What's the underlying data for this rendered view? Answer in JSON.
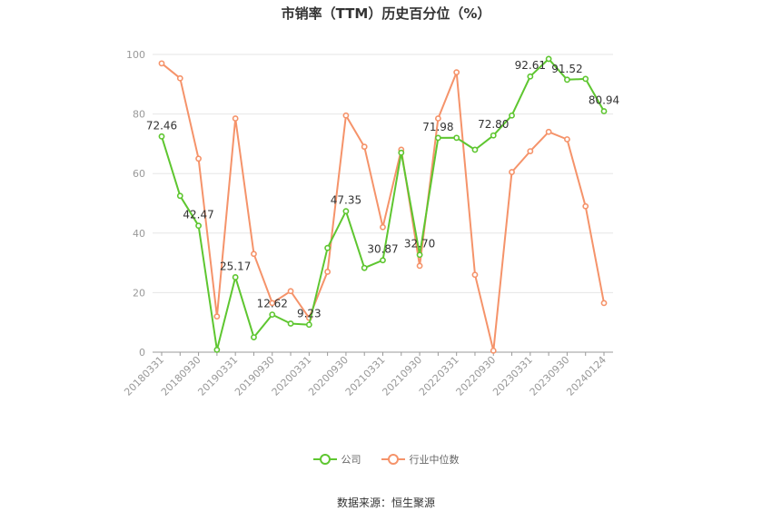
{
  "chart_data": {
    "type": "line",
    "title": "市销率（TTM）历史百分位（%）",
    "xlabel": "",
    "ylabel": "",
    "ylim": [
      0,
      100
    ],
    "yticks": [
      0,
      20,
      40,
      60,
      80,
      100
    ],
    "x": [
      "20180331",
      "20180630",
      "20180930",
      "20181231",
      "20190331",
      "20190630",
      "20190930",
      "20191231",
      "20200331",
      "20200630",
      "20200930",
      "20201231",
      "20210331",
      "20210630",
      "20210930",
      "20211231",
      "20220331",
      "20220630",
      "20220930",
      "20221231",
      "20230331",
      "20230630",
      "20230930",
      "20231231",
      "20240124"
    ],
    "xtick_labels": [
      "20180331",
      "20180930",
      "20190331",
      "20190930",
      "20200331",
      "20200930",
      "20210331",
      "20210930",
      "20220331",
      "20220930",
      "20230331",
      "20230930",
      "20240124"
    ],
    "series": [
      {
        "name": "公司",
        "color": "#5ec630",
        "values": [
          72.46,
          52.5,
          42.47,
          0.8,
          25.17,
          5.0,
          12.62,
          9.6,
          9.23,
          35.0,
          47.35,
          28.3,
          30.87,
          67.0,
          32.7,
          71.98,
          72.0,
          68.0,
          72.8,
          79.5,
          92.61,
          98.5,
          91.52,
          91.8,
          80.94
        ],
        "labels": {
          "0": "72.46",
          "2": "42.47",
          "4": "25.17",
          "6": "12.62",
          "8": "9.23",
          "10": "47.35",
          "12": "30.87",
          "14": "32.70",
          "15": "71.98",
          "18": "72.80",
          "20": "92.61",
          "22": "91.52",
          "24": "80.94"
        }
      },
      {
        "name": "行业中位数",
        "color": "#f5936a",
        "values": [
          97.0,
          92.0,
          65.0,
          12.0,
          78.5,
          33.0,
          16.5,
          20.5,
          11.5,
          27.0,
          79.5,
          69.0,
          42.0,
          68.0,
          29.0,
          78.5,
          94.0,
          26.0,
          0.5,
          60.5,
          67.5,
          74.0,
          71.5,
          49.0,
          16.5
        ]
      }
    ],
    "grid": true,
    "legend_position": "bottom"
  },
  "source": "数据来源：恒生聚源"
}
